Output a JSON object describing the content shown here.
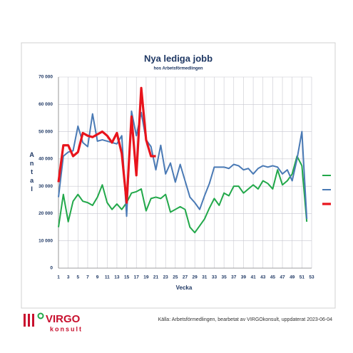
{
  "chart_data": {
    "type": "line",
    "title": "Nya lediga jobb",
    "subtitle": "hos Arbetsförmedlingen",
    "y_label": "Antal",
    "x_label": "Vecka",
    "x": [
      1,
      2,
      3,
      4,
      5,
      6,
      7,
      8,
      9,
      10,
      11,
      12,
      13,
      14,
      15,
      16,
      17,
      18,
      19,
      20,
      21,
      22,
      23,
      24,
      25,
      26,
      27,
      28,
      29,
      30,
      31,
      32,
      33,
      34,
      35,
      36,
      37,
      38,
      39,
      40,
      41,
      42,
      43,
      44,
      45,
      46,
      47,
      48,
      49,
      50,
      51,
      52
    ],
    "xlim": [
      1,
      53
    ],
    "xticks": [
      1,
      3,
      5,
      7,
      9,
      11,
      13,
      15,
      17,
      19,
      21,
      23,
      25,
      27,
      29,
      31,
      33,
      35,
      37,
      39,
      41,
      43,
      45,
      47,
      49,
      51,
      53
    ],
    "ylim": [
      0,
      70000
    ],
    "yticks": [
      {
        "value": 0,
        "label": "0"
      },
      {
        "value": 10000,
        "label": "10 000"
      },
      {
        "value": 20000,
        "label": "20 000"
      },
      {
        "value": 30000,
        "label": "30 000"
      },
      {
        "value": 40000,
        "label": "40 000"
      },
      {
        "value": 50000,
        "label": "50 000"
      },
      {
        "value": 60000,
        "label": "60 000"
      },
      {
        "value": 70000,
        "label": "70 000"
      }
    ],
    "grid": true,
    "legend": "right",
    "series": [
      {
        "color": "#22a84a",
        "width": 2,
        "values": [
          15000,
          27000,
          17000,
          24500,
          27000,
          24500,
          24000,
          23000,
          26000,
          30500,
          24000,
          21500,
          23500,
          21500,
          24000,
          27500,
          28000,
          29000,
          21000,
          25500,
          26000,
          25500,
          27000,
          20500,
          21500,
          22500,
          21500,
          15000,
          13000,
          15500,
          18000,
          22000,
          25500,
          23000,
          27500,
          26500,
          30000,
          30000,
          27500,
          29000,
          30500,
          29000,
          32000,
          31000,
          29000,
          36000,
          30500,
          32000,
          34500,
          41000,
          37500,
          17000
        ]
      },
      {
        "color": "#4a7ab5",
        "width": 2,
        "values": [
          26000,
          41000,
          42500,
          43000,
          52000,
          46000,
          44500,
          56500,
          46500,
          47000,
          46500,
          46000,
          45500,
          48500,
          19000,
          57500,
          48500,
          57000,
          47000,
          44500,
          36000,
          45000,
          34500,
          38500,
          31500,
          38000,
          32000,
          26000,
          24000,
          21500,
          26500,
          31000,
          37000,
          37000,
          37000,
          36500,
          38000,
          37500,
          36000,
          36500,
          34500,
          36500,
          37500,
          37000,
          37500,
          37000,
          34500,
          36000,
          32000,
          40000,
          50000,
          18000
        ]
      },
      {
        "color": "#e8141c",
        "width": 3.2,
        "values": [
          31500,
          45000,
          45000,
          41000,
          42500,
          49500,
          48500,
          48000,
          49000,
          50000,
          48500,
          46000,
          49500,
          42000,
          24000,
          55500,
          34000,
          66000,
          47000,
          41000,
          41000,
          null,
          null,
          null,
          null,
          null,
          null,
          null,
          null,
          null,
          null,
          null,
          null,
          null,
          null,
          null,
          null,
          null,
          null,
          null,
          null,
          null,
          null,
          null,
          null,
          null,
          null,
          null,
          null,
          null,
          null,
          null
        ]
      }
    ]
  },
  "logo": {
    "name": "VIRGO",
    "sub": "konsult"
  },
  "source": "Källa: Arbetsförmedlingen, bearbetat av VIRGOkonsult, uppdaterat 2023-06-04"
}
